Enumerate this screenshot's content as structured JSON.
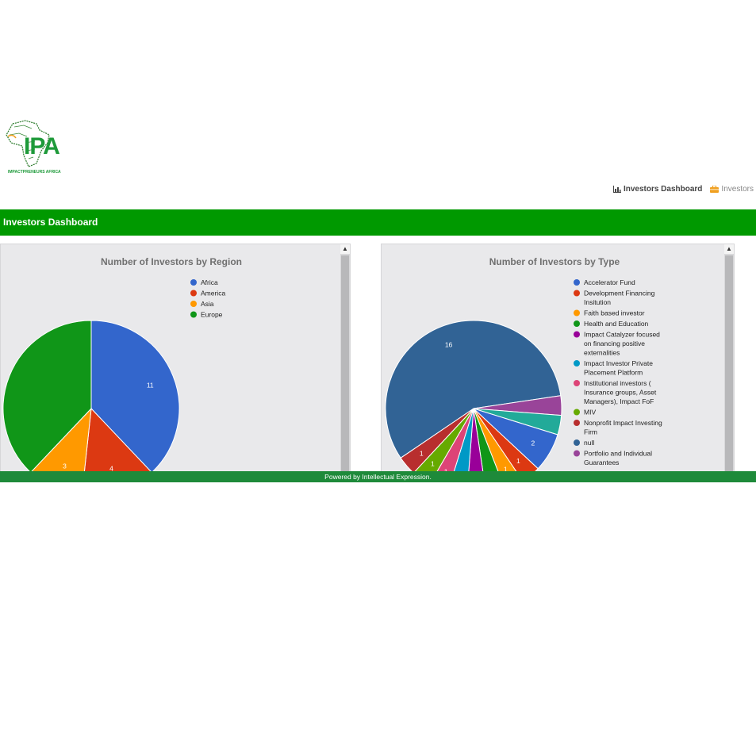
{
  "logo": {
    "text": "IPA",
    "tagline": "IMPACTPRENEURS AFRICA"
  },
  "nav": {
    "dashboard_label": "Investors Dashboard",
    "investors_label": "Investors"
  },
  "header": {
    "title": "Investors Dashboard"
  },
  "footer": {
    "text": "Powered by Intellectual Expression."
  },
  "colors": {
    "green_bar": "#009900",
    "footer": "#1e8a3a"
  },
  "chart_data": [
    {
      "type": "pie",
      "title": "Number of Investors by Region",
      "categories": [
        "Africa",
        "America",
        "Asia",
        "Europe"
      ],
      "values": [
        11,
        4,
        3,
        11
      ],
      "colors": [
        "#3366cc",
        "#dc3912",
        "#ff9900",
        "#109618"
      ],
      "data_labels": [
        "11",
        "4",
        "3",
        ""
      ],
      "legend_position": "right"
    },
    {
      "type": "pie",
      "title": "Number of Investors by Type",
      "categories": [
        "Accelerator Fund",
        "Development Financing Insitution",
        "Faith based investor",
        "Health and Education",
        "Impact Catalyzer focused on financing positive externalities",
        "Impact Investor Private Placement Platform",
        "Institutional investors ( Insurance groups, Asset Managers), Impact FoF",
        "MIV",
        "Nonprofit Impact Investing Firm",
        "null",
        "Portfolio and Individual Guarantees"
      ],
      "values": [
        2,
        1,
        1,
        1,
        1,
        1,
        1,
        1,
        1,
        16,
        1
      ],
      "colors": [
        "#3366cc",
        "#dc3912",
        "#ff9900",
        "#109618",
        "#990099",
        "#0099c6",
        "#dd4477",
        "#66aa00",
        "#b82e2e",
        "#316395",
        "#994499"
      ],
      "extra_slices": [
        1
      ],
      "data_labels": [
        "2",
        "1",
        "1",
        "1",
        "1",
        "1",
        "1",
        "1",
        "1",
        "16",
        ""
      ],
      "legend_position": "right"
    }
  ]
}
